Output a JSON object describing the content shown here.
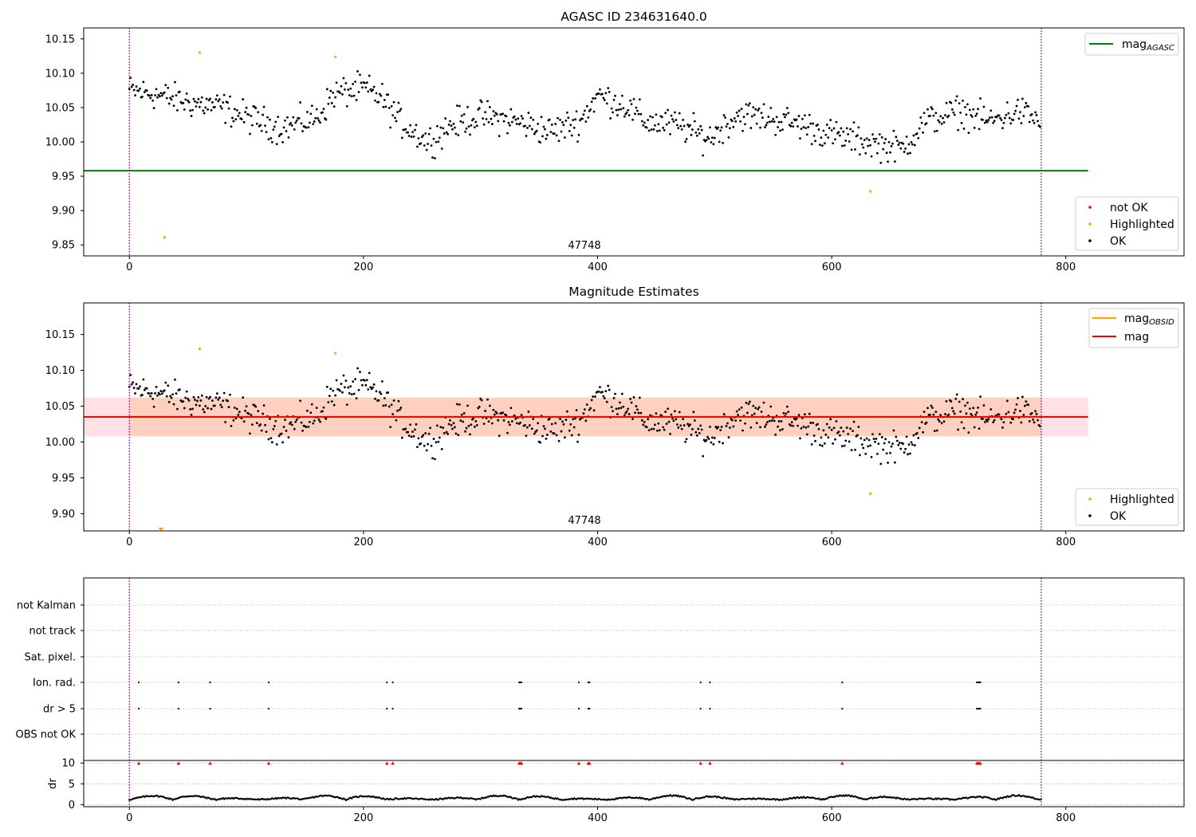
{
  "figure_title": "AGASC ID 234631640.0",
  "colors": {
    "ok": "#000000",
    "highlighted": "#ffa500",
    "not_ok": "#ff0000",
    "mag_agasc": "#008000",
    "mag_obsid": "#ffa500",
    "mag": "#ff0000",
    "mag_band": "#ffd0c0",
    "mag_band_ext": "#ffe0e6",
    "boundary": "#800080"
  },
  "chart_data": [
    {
      "name": "agasc_panel",
      "type": "scatter",
      "title": "AGASC ID 234631640.0",
      "xlim": [
        -39,
        901
      ],
      "ylim": [
        9.834,
        10.166
      ],
      "xticks": [
        "0",
        "200",
        "400",
        "600",
        "800"
      ],
      "yticks": [
        "9.85",
        "9.90",
        "9.95",
        "10.00",
        "10.05",
        "10.10",
        "10.15"
      ],
      "obsid_label": "47748",
      "obsid_boundaries": [
        0,
        779
      ],
      "mag_agasc": 9.958,
      "mag_agasc_x": [
        -39,
        819
      ],
      "legend_lines": [
        {
          "label": "mag",
          "sub": "AGASC",
          "color": "#008000"
        }
      ],
      "legend_points": [
        {
          "label": "not OK",
          "color": "#ff0000"
        },
        {
          "label": "Highlighted",
          "color": "#ffa500"
        },
        {
          "label": "OK",
          "color": "#000000"
        }
      ],
      "highlighted": [
        [
          30,
          9.861
        ],
        [
          60,
          10.13
        ],
        [
          176,
          10.124
        ],
        [
          633,
          9.928
        ]
      ],
      "ok_points_count": 779
    },
    {
      "name": "magnitude_panel",
      "type": "scatter",
      "title": "Magnitude Estimates",
      "xlim": [
        -39,
        901
      ],
      "ylim": [
        9.876,
        10.194
      ],
      "xticks": [
        "0",
        "200",
        "400",
        "600",
        "800"
      ],
      "yticks": [
        "9.90",
        "9.95",
        "10.00",
        "10.05",
        "10.10",
        "10.15"
      ],
      "obsid_label": "47748",
      "obsid_boundaries": [
        0,
        779
      ],
      "mag": 10.035,
      "mag_band": [
        10.008,
        10.062
      ],
      "mag_x": [
        -39,
        819
      ],
      "legend_lines": [
        {
          "label": "mag",
          "sub": "OBSID",
          "color": "#ffa500"
        },
        {
          "label": "mag",
          "sub": "",
          "color": "#ff0000"
        }
      ],
      "legend_points": [
        {
          "label": "Highlighted",
          "color": "#ffa500"
        },
        {
          "label": "OK",
          "color": "#000000"
        }
      ],
      "highlighted": [
        [
          60,
          10.13
        ],
        [
          176,
          10.124
        ],
        [
          633,
          9.928
        ]
      ],
      "offscale_marker": [
        27,
        9.876
      ]
    },
    {
      "name": "flags_panel",
      "type": "scatter",
      "xlim": [
        -39,
        901
      ],
      "categories": [
        "not Kalman",
        "not track",
        "Sat. pixel.",
        "Ion. rad.",
        "dr > 5",
        "OBS not OK"
      ],
      "flag_x": [
        8,
        42,
        69,
        119,
        220,
        225,
        333,
        334,
        335,
        384,
        392,
        393,
        488,
        496,
        609,
        724,
        725,
        726,
        727
      ],
      "flagged_categories": [
        "Ion. rad.",
        "dr > 5"
      ],
      "dr_label": "dr",
      "dr_yticks": [
        "0",
        "5",
        "10"
      ],
      "dr_ylim": [
        -0.5,
        11
      ],
      "xticks": [
        "0",
        "200",
        "400",
        "600",
        "800"
      ],
      "obsid_boundaries": [
        0,
        779
      ]
    }
  ]
}
